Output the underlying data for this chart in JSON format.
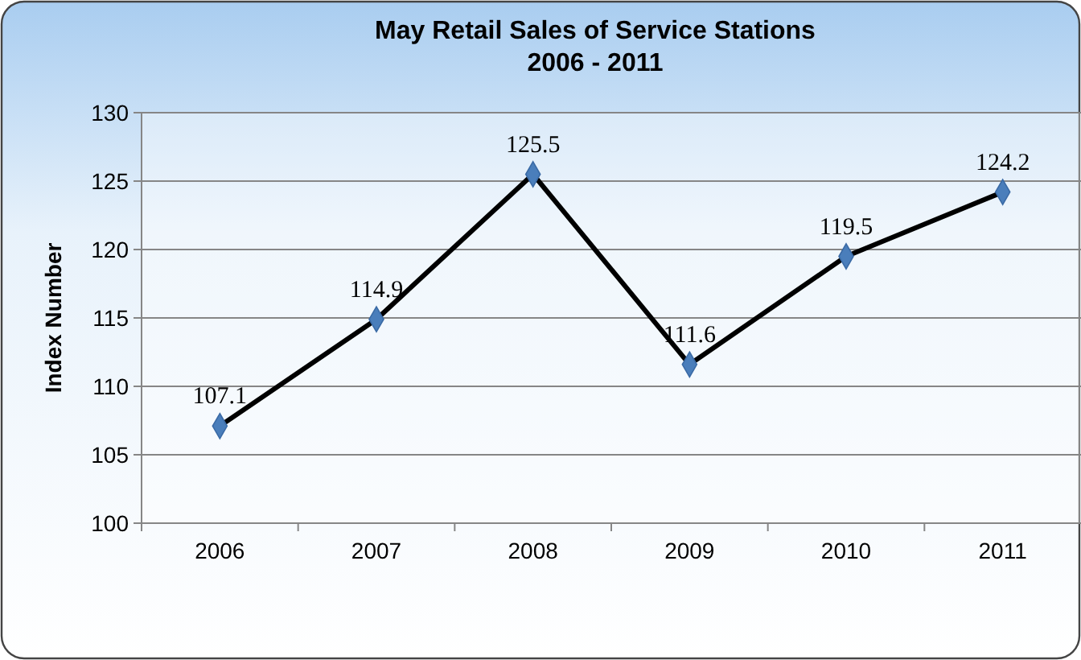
{
  "chart_data": {
    "type": "line",
    "title": "May Retail Sales of Service Stations\n2006 - 2011",
    "ylabel": "Index Number",
    "categories": [
      "2006",
      "2007",
      "2008",
      "2009",
      "2010",
      "2011"
    ],
    "series": [
      {
        "color": "#000000",
        "values": [
          107.1,
          114.9,
          125.5,
          111.6,
          119.5,
          124.2
        ]
      }
    ],
    "ylim": [
      100,
      130
    ],
    "yticks": [
      100,
      105,
      110,
      115,
      120,
      125,
      130
    ],
    "grid": "y",
    "marker": "diamond",
    "data_labels": true
  }
}
